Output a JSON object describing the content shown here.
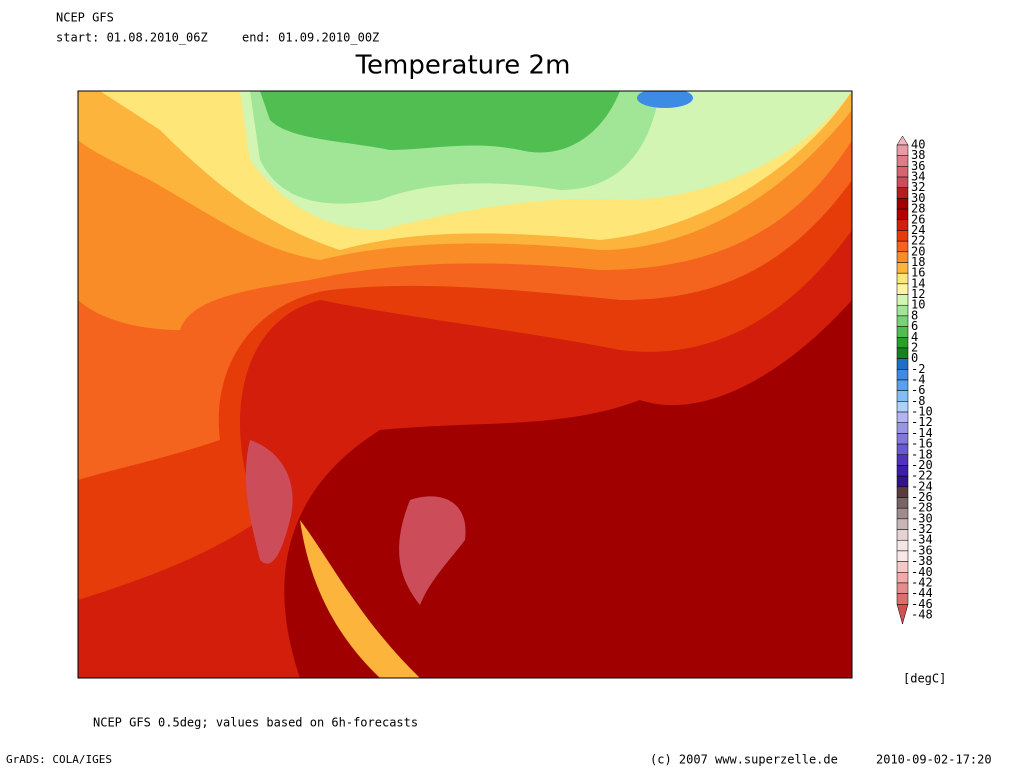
{
  "header": {
    "model": "NCEP GFS",
    "start": "start: 01.08.2010_06Z",
    "end": "end: 01.09.2010_00Z"
  },
  "title": "Temperature 2m",
  "colorbar": {
    "labels": [
      40,
      38,
      36,
      34,
      32,
      30,
      28,
      26,
      24,
      22,
      20,
      18,
      16,
      14,
      12,
      10,
      8,
      6,
      4,
      2,
      0,
      -2,
      -4,
      -6,
      -8,
      -10,
      -12,
      -14,
      -16,
      -18,
      -20,
      -22,
      -24,
      -26,
      -28,
      -30,
      -32,
      -34,
      -36,
      -38,
      -40,
      -42,
      -44,
      -46,
      -48
    ],
    "colors": [
      "#f0b4c0",
      "#e89aa5",
      "#e07c88",
      "#d86470",
      "#cc4c5a",
      "#b41e1e",
      "#a00000",
      "#b40000",
      "#d21e0a",
      "#e63c0a",
      "#f5641e",
      "#fa8c28",
      "#fdb43c",
      "#fee678",
      "#fff5a0",
      "#d2f5b4",
      "#a0e696",
      "#78d278",
      "#50be50",
      "#28a028",
      "#14821e",
      "#1e6ec8",
      "#3c8ce6",
      "#5aa0f0",
      "#82bef5",
      "#aad2fa",
      "#b4b4f0",
      "#9a96e6",
      "#8278dc",
      "#6a5ad2",
      "#5032be",
      "#3c1eaa",
      "#32148c",
      "#5a3c3c",
      "#786464",
      "#a08c8c",
      "#c8b4b4",
      "#e6d2d2",
      "#f5e6e6",
      "#fae6e6",
      "#f5c8c8",
      "#f0aaaa",
      "#e68c8c",
      "#dc6e6e",
      "#d25050"
    ],
    "unit": "[degC]"
  },
  "footer": {
    "note": "NCEP GFS 0.5deg; values based on 6h-forecasts",
    "software": "GrADS: COLA/IGES",
    "copyright": "(c) 2007 www.superzelle.de",
    "timestamp": "2010-09-02-17:20"
  }
}
